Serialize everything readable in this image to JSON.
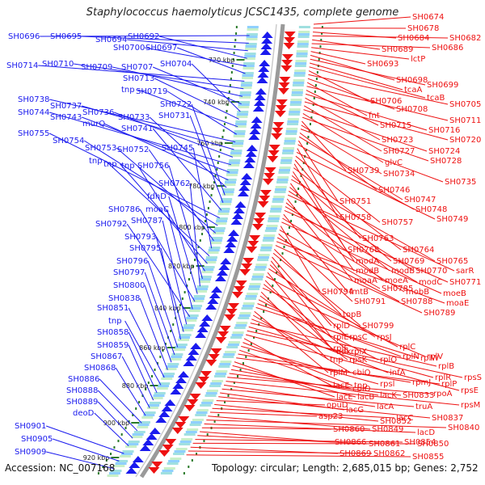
{
  "title": "Staphylococcus haemolyticus JCSC1435, complete genome",
  "footer": {
    "accession": "Accession: NC_007168",
    "summary": "Topology: circular; Length: 2,685,015 bp; Genes: 2,752"
  },
  "colors": {
    "plus_strand": "#1a1aee",
    "minus_strand": "#ee1111",
    "backbone": "#999999",
    "ticks": "#2a7a2a"
  },
  "kbp_ticks": [
    "720 kbp",
    "740 kbp",
    "760 kbp",
    "780 kbp",
    "800 kbp",
    "820 kbp",
    "840 kbp",
    "860 kbp",
    "880 kbp",
    "900 kbp",
    "920 kbp"
  ],
  "left_labels": [
    "SH0696",
    "SH0695",
    "SH0694",
    "SH0692",
    "SH0700",
    "SH0697",
    "SH0714",
    "SH0710",
    "SH0709",
    "SH0707",
    "SH0704",
    "SH0713",
    "tnp",
    "SH0719",
    "SH0738",
    "SH0737",
    "SH0736",
    "SH0744",
    "SH0743",
    "murQ",
    "SH0733",
    "SH0722",
    "SH0731",
    "SH0741",
    "SH0755",
    "SH0754",
    "SH0753",
    "SH0752",
    "SH0745",
    "tnp",
    "tnp",
    "tnp",
    "SH0756",
    "SH0762",
    "fdhD",
    "SH0786",
    "moaC",
    "SH0792",
    "SH0787",
    "SH0793",
    "SH0795",
    "SH0796",
    "SH0797",
    "SH0800",
    "SH0838",
    "SH0851",
    "tnp",
    "SH0858",
    "SH0859",
    "SH0867",
    "SH0868",
    "SH0886",
    "SH0888",
    "SH0889",
    "deoD",
    "SH0901",
    "SH0905",
    "SH0909"
  ],
  "right_labels": [
    "SH0674",
    "SH0678",
    "SH0684",
    "SH0682",
    "SH0689",
    "SH0686",
    "lctP",
    "SH0693",
    "SH0698",
    "SH0699",
    "tcaA",
    "tcaB",
    "SH0706",
    "SH0705",
    "SH0708",
    "fnt",
    "SH0711",
    "SH0715",
    "SH0716",
    "SH0723",
    "SH0720",
    "SH0727",
    "SH0724",
    "glvC",
    "SH0728",
    "SH0739",
    "SH0734",
    "SH0735",
    "SH0746",
    "SH0747",
    "SH0751",
    "SH0748",
    "SH0758",
    "SH0749",
    "SH0757",
    "SH0763",
    "SH0768",
    "SH0764",
    "modA",
    "SH0769",
    "SH0765",
    "modB",
    "modB",
    "SH0770",
    "sarR",
    "moaA",
    "moeA",
    "modC",
    "SH0771",
    "fmtB",
    "mobB",
    "moeB",
    "SH0794",
    "SH0785",
    "SH0791",
    "SH0788",
    "moaE",
    "SH0789",
    "topB",
    "SH0799",
    "rplD",
    "rplE",
    "rpsC",
    "rpsJ",
    "rplF",
    "rplC",
    "adk",
    "rplX",
    "rplV",
    "tnp",
    "rpsK",
    "rplO",
    "rplN",
    "rplW",
    "rplM",
    "cbiO",
    "infA",
    "rplB",
    "rplR",
    "rpsS",
    "rpsE",
    "lacF",
    "tnp",
    "rpsl",
    "cbiO",
    "rpmJ",
    "rplP",
    "lacE",
    "lacB",
    "lacK",
    "SH0833",
    "rpoA",
    "rpsM",
    "lacA",
    "truA",
    "lacG",
    "SH0837",
    "opuD",
    "SH0852",
    "lacC",
    "asp23",
    "SH0849",
    "SH0840",
    "lacD",
    "SH0860",
    "SH0866",
    "SH0861",
    "SH0854",
    "SH0850",
    "SH0869",
    "SH0862",
    "SH0855"
  ]
}
